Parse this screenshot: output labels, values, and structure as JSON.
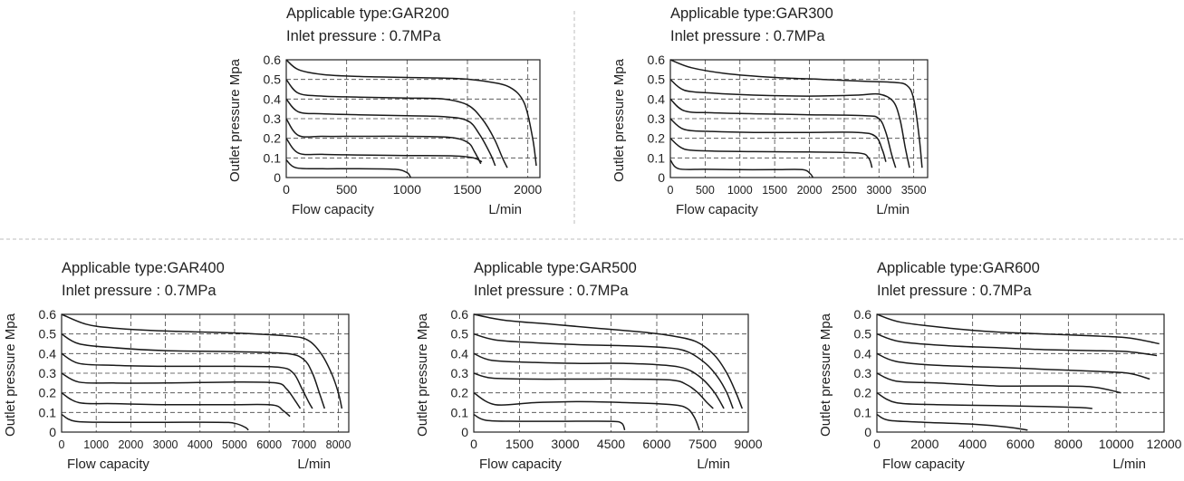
{
  "chart_data": [
    {
      "type": "line",
      "title": "Applicable type:GAR200",
      "subtitle": "Inlet pressure  : 0.7MPa",
      "ylabel": "Outlet pressure  Mpa",
      "xlabel": "Flow capacity",
      "xunit": "L/min",
      "xlim": [
        0,
        2100
      ],
      "ylim": [
        0,
        0.6
      ],
      "xticks": [
        "0",
        "500",
        "1000",
        "1500",
        "2000"
      ],
      "xtick_values": [
        0,
        500,
        1000,
        1500,
        2000
      ],
      "yticks": [
        "0",
        "0.1",
        "0.2",
        "0.3",
        "0.4",
        "0.5",
        "0.6"
      ],
      "grid": true,
      "series": [
        {
          "x": [
            0,
            100,
            300,
            600,
            1000,
            1400,
            1650,
            1850,
            1970,
            2040,
            2070
          ],
          "y": [
            0.6,
            0.55,
            0.525,
            0.515,
            0.51,
            0.505,
            0.49,
            0.46,
            0.38,
            0.2,
            0.06
          ]
        },
        {
          "x": [
            0,
            100,
            300,
            600,
            1000,
            1300,
            1500,
            1620,
            1720,
            1790,
            1830
          ],
          "y": [
            0.5,
            0.43,
            0.415,
            0.41,
            0.405,
            0.4,
            0.37,
            0.3,
            0.2,
            0.1,
            0.05
          ]
        },
        {
          "x": [
            0,
            100,
            300,
            600,
            1000,
            1300,
            1500,
            1600,
            1690,
            1730
          ],
          "y": [
            0.4,
            0.335,
            0.325,
            0.32,
            0.315,
            0.31,
            0.29,
            0.22,
            0.12,
            0.06
          ]
        },
        {
          "x": [
            0,
            100,
            300,
            600,
            1000,
            1350,
            1500,
            1560,
            1610
          ],
          "y": [
            0.3,
            0.215,
            0.21,
            0.21,
            0.21,
            0.205,
            0.18,
            0.13,
            0.07
          ]
        },
        {
          "x": [
            0,
            100,
            300,
            600,
            1000,
            1400,
            1550,
            1620
          ],
          "y": [
            0.2,
            0.125,
            0.118,
            0.115,
            0.112,
            0.11,
            0.1,
            0.08
          ]
        },
        {
          "x": [
            0,
            80,
            300,
            600,
            900,
            1000,
            1030
          ],
          "y": [
            0.09,
            0.05,
            0.045,
            0.045,
            0.042,
            0.025,
            0.0
          ]
        }
      ]
    },
    {
      "type": "line",
      "title": "Applicable type:GAR300",
      "subtitle": "Inlet pressure  : 0.7MPa",
      "ylabel": "Outlet pressure  Mpa",
      "xlabel": "Flow capacity",
      "xunit": "L/min",
      "xlim": [
        0,
        3700
      ],
      "ylim": [
        0,
        0.6
      ],
      "xticks": [
        "0",
        "500",
        "1000",
        "1500",
        "2000",
        "2500",
        "3000",
        "3500"
      ],
      "xtick_values": [
        0,
        500,
        1000,
        1500,
        2000,
        2500,
        3000,
        3500
      ],
      "yticks": [
        "0",
        "0.1",
        "0.2",
        "0.3",
        "0.4",
        "0.5",
        "0.6"
      ],
      "grid": true,
      "series": [
        {
          "x": [
            0,
            300,
            800,
            1500,
            2200,
            2800,
            3200,
            3400,
            3500,
            3580,
            3620
          ],
          "y": [
            0.6,
            0.56,
            0.53,
            0.51,
            0.5,
            0.49,
            0.485,
            0.47,
            0.4,
            0.2,
            0.05
          ]
        },
        {
          "x": [
            0,
            200,
            600,
            1200,
            2000,
            2700,
            3000,
            3200,
            3300,
            3380,
            3440
          ],
          "y": [
            0.5,
            0.445,
            0.43,
            0.42,
            0.415,
            0.42,
            0.425,
            0.39,
            0.3,
            0.15,
            0.05
          ]
        },
        {
          "x": [
            0,
            200,
            600,
            1200,
            2000,
            2800,
            3000,
            3100,
            3180,
            3240
          ],
          "y": [
            0.4,
            0.34,
            0.33,
            0.325,
            0.32,
            0.315,
            0.3,
            0.23,
            0.12,
            0.05
          ]
        },
        {
          "x": [
            0,
            200,
            600,
            1200,
            2000,
            2700,
            2950,
            3050,
            3100
          ],
          "y": [
            0.3,
            0.245,
            0.235,
            0.23,
            0.23,
            0.23,
            0.21,
            0.14,
            0.08
          ]
        },
        {
          "x": [
            0,
            200,
            600,
            1200,
            2000,
            2700,
            2850,
            2900
          ],
          "y": [
            0.2,
            0.145,
            0.135,
            0.132,
            0.13,
            0.125,
            0.1,
            0.05
          ]
        },
        {
          "x": [
            0,
            120,
            500,
            1000,
            1500,
            1900,
            2010,
            2050
          ],
          "y": [
            0.09,
            0.045,
            0.042,
            0.04,
            0.04,
            0.04,
            0.02,
            0.0
          ]
        }
      ]
    },
    {
      "type": "line",
      "title": "Applicable type:GAR400",
      "subtitle": "Inlet pressure  : 0.7MPa",
      "ylabel": "Outlet pressure  Mpa",
      "xlabel": "Flow capacity",
      "xunit": "L/min",
      "xlim": [
        0,
        8300
      ],
      "ylim": [
        0,
        0.6
      ],
      "xticks": [
        "0",
        "1000",
        "2000",
        "3000",
        "4000",
        "5000",
        "6000",
        "7000",
        "8000"
      ],
      "xtick_values": [
        0,
        1000,
        2000,
        3000,
        4000,
        5000,
        6000,
        7000,
        8000
      ],
      "yticks": [
        "0",
        "0.1",
        "0.2",
        "0.3",
        "0.4",
        "0.5",
        "0.6"
      ],
      "grid": true,
      "series": [
        {
          "x": [
            0,
            700,
            1500,
            3000,
            5000,
            6500,
            7100,
            7500,
            7800,
            8000,
            8100
          ],
          "y": [
            0.6,
            0.55,
            0.53,
            0.515,
            0.505,
            0.49,
            0.47,
            0.4,
            0.3,
            0.2,
            0.12
          ]
        },
        {
          "x": [
            0,
            500,
            1500,
            3000,
            5000,
            6500,
            7000,
            7250,
            7450,
            7600
          ],
          "y": [
            0.5,
            0.45,
            0.43,
            0.415,
            0.41,
            0.4,
            0.37,
            0.3,
            0.2,
            0.12
          ]
        },
        {
          "x": [
            0,
            500,
            1500,
            3000,
            5000,
            6300,
            6700,
            6950,
            7150,
            7250
          ],
          "y": [
            0.4,
            0.35,
            0.34,
            0.335,
            0.335,
            0.33,
            0.3,
            0.22,
            0.15,
            0.12
          ]
        },
        {
          "x": [
            0,
            500,
            1500,
            3000,
            5000,
            6200,
            6500,
            6750,
            6900
          ],
          "y": [
            0.3,
            0.255,
            0.25,
            0.25,
            0.255,
            0.25,
            0.22,
            0.16,
            0.12
          ]
        },
        {
          "x": [
            0,
            500,
            1500,
            3000,
            5000,
            6100,
            6400,
            6600
          ],
          "y": [
            0.2,
            0.15,
            0.145,
            0.14,
            0.14,
            0.138,
            0.11,
            0.08
          ]
        },
        {
          "x": [
            0,
            400,
            1500,
            3000,
            4500,
            5000,
            5300,
            5400
          ],
          "y": [
            0.09,
            0.055,
            0.05,
            0.05,
            0.05,
            0.045,
            0.025,
            0.01
          ]
        }
      ]
    },
    {
      "type": "line",
      "title": "Applicable type:GAR500",
      "subtitle": "Inlet pressure  : 0.7MPa",
      "ylabel": "Outlet pressure  Mpa",
      "xlabel": "Flow capacity",
      "xunit": "L/min",
      "xlim": [
        0,
        9000
      ],
      "ylim": [
        0,
        0.6
      ],
      "xticks": [
        "0",
        "1500",
        "3000",
        "4500",
        "6000",
        "7500",
        "9000"
      ],
      "xtick_values": [
        0,
        1500,
        3000,
        4500,
        6000,
        7500,
        9000
      ],
      "yticks": [
        "0",
        "0.1",
        "0.2",
        "0.3",
        "0.4",
        "0.5",
        "0.6"
      ],
      "grid": true,
      "series": [
        {
          "x": [
            0,
            1000,
            2500,
            4000,
            5500,
            6500,
            7300,
            7900,
            8300,
            8600,
            8800
          ],
          "y": [
            0.6,
            0.57,
            0.55,
            0.53,
            0.51,
            0.49,
            0.46,
            0.39,
            0.3,
            0.2,
            0.12
          ]
        },
        {
          "x": [
            0,
            700,
            2000,
            3500,
            5000,
            6300,
            7000,
            7600,
            8000,
            8300,
            8500
          ],
          "y": [
            0.5,
            0.47,
            0.455,
            0.445,
            0.44,
            0.43,
            0.41,
            0.35,
            0.28,
            0.2,
            0.12
          ]
        },
        {
          "x": [
            0,
            600,
            2000,
            3500,
            5000,
            6300,
            7000,
            7500,
            7900,
            8200
          ],
          "y": [
            0.4,
            0.365,
            0.355,
            0.35,
            0.35,
            0.34,
            0.32,
            0.27,
            0.2,
            0.12
          ]
        },
        {
          "x": [
            0,
            600,
            2000,
            3500,
            5000,
            6500,
            7000,
            7350,
            7650,
            7850
          ],
          "y": [
            0.3,
            0.275,
            0.27,
            0.27,
            0.27,
            0.265,
            0.24,
            0.2,
            0.15,
            0.12
          ]
        },
        {
          "x": [
            0,
            700,
            2000,
            3500,
            5000,
            6500,
            7000,
            7250,
            7400
          ],
          "y": [
            0.2,
            0.14,
            0.15,
            0.155,
            0.15,
            0.14,
            0.12,
            0.07,
            0.01
          ]
        },
        {
          "x": [
            0,
            400,
            1500,
            3000,
            4500,
            4850,
            4950
          ],
          "y": [
            0.09,
            0.06,
            0.055,
            0.055,
            0.055,
            0.045,
            0.01
          ]
        }
      ]
    },
    {
      "type": "line",
      "title": "Applicable type:GAR600",
      "subtitle": "Inlet pressure  : 0.7MPa",
      "ylabel": "Outlet pressure  Mpa",
      "xlabel": "Flow capacity",
      "xunit": "L/min",
      "xlim": [
        0,
        12000
      ],
      "ylim": [
        0,
        0.6
      ],
      "xticks": [
        "0",
        "2000",
        "4000",
        "6000",
        "8000",
        "10000",
        "12000"
      ],
      "xtick_values": [
        0,
        2000,
        4000,
        6000,
        8000,
        10000,
        12000
      ],
      "yticks": [
        "0",
        "0.1",
        "0.2",
        "0.3",
        "0.4",
        "0.5",
        "0.6"
      ],
      "grid": true,
      "series": [
        {
          "x": [
            0,
            1000,
            3000,
            5000,
            7000,
            9000,
            10500,
            11800
          ],
          "y": [
            0.6,
            0.56,
            0.53,
            0.51,
            0.5,
            0.49,
            0.48,
            0.45
          ]
        },
        {
          "x": [
            0,
            1000,
            3000,
            5000,
            7000,
            9000,
            10500,
            11700
          ],
          "y": [
            0.5,
            0.46,
            0.44,
            0.43,
            0.42,
            0.415,
            0.41,
            0.39
          ]
        },
        {
          "x": [
            0,
            800,
            2500,
            5000,
            7000,
            9000,
            10500,
            11400
          ],
          "y": [
            0.4,
            0.36,
            0.34,
            0.33,
            0.32,
            0.31,
            0.3,
            0.27
          ]
        },
        {
          "x": [
            0,
            800,
            2500,
            5000,
            7000,
            9000,
            10200
          ],
          "y": [
            0.3,
            0.26,
            0.25,
            0.235,
            0.235,
            0.23,
            0.2
          ]
        },
        {
          "x": [
            0,
            800,
            2500,
            5000,
            7000,
            8500,
            9000
          ],
          "y": [
            0.2,
            0.15,
            0.14,
            0.135,
            0.13,
            0.125,
            0.12
          ]
        },
        {
          "x": [
            0,
            500,
            2000,
            4000,
            5500,
            6300
          ],
          "y": [
            0.09,
            0.06,
            0.05,
            0.04,
            0.025,
            0.01
          ]
        }
      ]
    }
  ]
}
